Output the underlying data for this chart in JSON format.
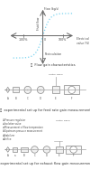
{
  "bg_color": "#ffffff",
  "axis_color": "#666666",
  "curve_color": "#7dd4f0",
  "curve_linewidth": 0.9,
  "axis_linewidth": 0.7,
  "xlabel_line1": "Electrical signal",
  "xlabel_line2": "value (%)",
  "x_tick_neg": "-100%",
  "x_tick_zero": "0",
  "x_tick_pos": "100%",
  "y_label_top": "Flow (kg/s)",
  "y_label_recirculation": "Recirculation",
  "y_label_fluid": "Fluid flow",
  "label_fontsize": 2.5,
  "tick_label_fontsize": 2.3,
  "section_a_label": "Ⓐ  Flow gain characteristics",
  "section_b_label": "Ⓑ  experimental set up for feed rate gain measurement",
  "section_c_label": "Ⓒ  experimental set up for exhaust flow gain measurement",
  "section_label_fontsize": 2.6,
  "diagram_lc": "#aaaaaa",
  "diagram_cc": "#888888",
  "diagram_fontsize": 1.9,
  "control_signal_b": "Control signal",
  "control_signal_c": "Control signal",
  "legend_c": [
    "①Pressure regulator",
    "②Isolation valve",
    "③Measurement of flow temperature",
    "④Upstream pressure measurement",
    "⑤Stabilizer",
    "⑥Orifice"
  ]
}
